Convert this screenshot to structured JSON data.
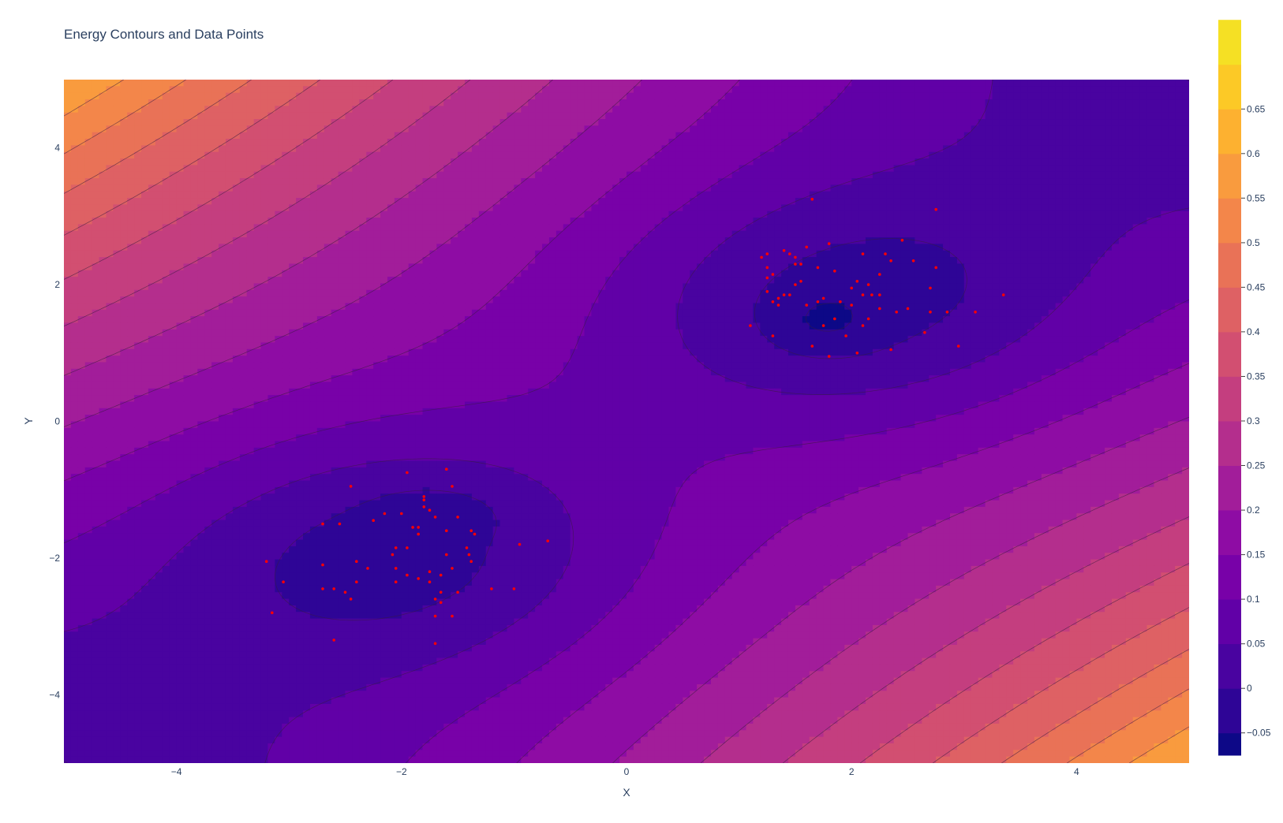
{
  "chart_data": {
    "type": "contour",
    "title": "Energy Contours and Data Points",
    "xlabel": "X",
    "ylabel": "Y",
    "xlim": [
      -5,
      5
    ],
    "ylim": [
      -5,
      5
    ],
    "x_ticks": [
      -4,
      -2,
      0,
      2,
      4
    ],
    "x_tick_labels": [
      "−4",
      "−2",
      "0",
      "2",
      "4"
    ],
    "y_ticks": [
      -4,
      -2,
      0,
      2,
      4
    ],
    "y_tick_labels": [
      "−4",
      "−2",
      "0",
      "2",
      "4"
    ],
    "grid": false,
    "contour": {
      "description_of_field": "double-well energy: minima near (-1.7,-1.3) and (1.8,1.4); highest in top-left and bottom-right corners",
      "start": -0.05,
      "end": 0.65,
      "size": 0.05,
      "zmin": -0.075,
      "zmax": 0.675,
      "colorscale": "plasma",
      "colors": [
        "#0d0887",
        "#2e0596",
        "#4903a0",
        "#6100a7",
        "#7801a8",
        "#8e0ca4",
        "#a21d9a",
        "#b42e8d",
        "#c43e7f",
        "#d24f71",
        "#de6164",
        "#e97257",
        "#f3864a",
        "#f99b3e",
        "#fdb130",
        "#fcc926",
        "#f5e024",
        "#f0f921"
      ]
    },
    "colorbar": {
      "ticks": [
        -0.05,
        0,
        0.05,
        0.1,
        0.15,
        0.2,
        0.25,
        0.3,
        0.35,
        0.4,
        0.45,
        0.5,
        0.55,
        0.6,
        0.65
      ],
      "tick_labels": [
        "−0.05",
        "0",
        "0.05",
        "0.1",
        "0.15",
        "0.2",
        "0.25",
        "0.3",
        "0.35",
        "0.4",
        "0.45",
        "0.5",
        "0.55",
        "0.6",
        "0.65"
      ]
    },
    "points": {
      "color": "#ff0000",
      "cluster1": [
        [
          -1.8,
          -1.1
        ],
        [
          -1.6,
          -0.7
        ],
        [
          -1.95,
          -0.75
        ],
        [
          -1.55,
          -0.95
        ],
        [
          -2.45,
          -0.95
        ],
        [
          -1.75,
          -1.3
        ],
        [
          -1.8,
          -1.15
        ],
        [
          -1.5,
          -1.4
        ],
        [
          -1.85,
          -1.55
        ],
        [
          -2.0,
          -1.35
        ],
        [
          -2.15,
          -1.35
        ],
        [
          -2.25,
          -1.45
        ],
        [
          -2.7,
          -1.5
        ],
        [
          -2.55,
          -1.5
        ],
        [
          -1.7,
          -1.4
        ],
        [
          -1.6,
          -1.6
        ],
        [
          -1.35,
          -1.65
        ],
        [
          -1.38,
          -1.6
        ],
        [
          -0.95,
          -1.8
        ],
        [
          -0.7,
          -1.75
        ],
        [
          -1.42,
          -1.85
        ],
        [
          -1.4,
          -1.95
        ],
        [
          -1.38,
          -2.05
        ],
        [
          -1.6,
          -1.95
        ],
        [
          -1.95,
          -1.85
        ],
        [
          -2.05,
          -1.85
        ],
        [
          -2.08,
          -1.95
        ],
        [
          -2.05,
          -2.15
        ],
        [
          -2.3,
          -2.15
        ],
        [
          -2.4,
          -2.05
        ],
        [
          -2.7,
          -2.1
        ],
        [
          -3.2,
          -2.05
        ],
        [
          -1.55,
          -2.15
        ],
        [
          -1.65,
          -2.25
        ],
        [
          -1.75,
          -2.2
        ],
        [
          -1.95,
          -2.25
        ],
        [
          -1.85,
          -2.3
        ],
        [
          -2.05,
          -2.35
        ],
        [
          -2.4,
          -2.35
        ],
        [
          -3.05,
          -2.35
        ],
        [
          -1.75,
          -2.35
        ],
        [
          -1.65,
          -2.5
        ],
        [
          -1.5,
          -2.5
        ],
        [
          -1.2,
          -2.45
        ],
        [
          -1.0,
          -2.45
        ],
        [
          -2.5,
          -2.5
        ],
        [
          -2.6,
          -2.45
        ],
        [
          -2.7,
          -2.45
        ],
        [
          -2.45,
          -2.6
        ],
        [
          -1.7,
          -2.6
        ],
        [
          -1.65,
          -2.65
        ],
        [
          -1.7,
          -2.85
        ],
        [
          -1.55,
          -2.85
        ],
        [
          -3.15,
          -2.8
        ],
        [
          -2.6,
          -3.2
        ],
        [
          -1.7,
          -3.25
        ],
        [
          -1.8,
          -1.25
        ],
        [
          -1.9,
          -1.55
        ],
        [
          -1.85,
          -1.65
        ]
      ],
      "cluster2": [
        [
          1.65,
          3.25
        ],
        [
          2.75,
          3.1
        ],
        [
          1.8,
          2.6
        ],
        [
          1.6,
          2.55
        ],
        [
          2.45,
          2.65
        ],
        [
          1.25,
          2.45
        ],
        [
          1.4,
          2.5
        ],
        [
          1.45,
          2.45
        ],
        [
          1.5,
          2.4
        ],
        [
          1.2,
          2.4
        ],
        [
          2.1,
          2.45
        ],
        [
          2.3,
          2.45
        ],
        [
          2.35,
          2.35
        ],
        [
          2.55,
          2.35
        ],
        [
          1.5,
          2.3
        ],
        [
          1.55,
          2.3
        ],
        [
          1.7,
          2.25
        ],
        [
          1.85,
          2.2
        ],
        [
          2.75,
          2.25
        ],
        [
          2.25,
          2.15
        ],
        [
          1.3,
          2.15
        ],
        [
          1.25,
          2.1
        ],
        [
          1.55,
          2.05
        ],
        [
          1.5,
          2.0
        ],
        [
          2.05,
          2.05
        ],
        [
          2.15,
          2.0
        ],
        [
          1.25,
          1.9
        ],
        [
          1.45,
          1.85
        ],
        [
          1.4,
          1.85
        ],
        [
          2.25,
          1.85
        ],
        [
          2.18,
          1.85
        ],
        [
          2.1,
          1.85
        ],
        [
          2.0,
          1.95
        ],
        [
          2.7,
          1.95
        ],
        [
          3.35,
          1.85
        ],
        [
          1.3,
          1.75
        ],
        [
          1.35,
          1.8
        ],
        [
          1.35,
          1.7
        ],
        [
          1.7,
          1.75
        ],
        [
          1.75,
          1.8
        ],
        [
          1.6,
          1.7
        ],
        [
          1.9,
          1.75
        ],
        [
          2.0,
          1.7
        ],
        [
          2.25,
          1.65
        ],
        [
          2.4,
          1.6
        ],
        [
          2.5,
          1.65
        ],
        [
          2.7,
          1.6
        ],
        [
          2.85,
          1.6
        ],
        [
          3.1,
          1.6
        ],
        [
          1.85,
          1.5
        ],
        [
          2.15,
          1.5
        ],
        [
          2.1,
          1.4
        ],
        [
          1.75,
          1.4
        ],
        [
          1.1,
          1.4
        ],
        [
          1.3,
          1.25
        ],
        [
          2.65,
          1.3
        ],
        [
          1.95,
          1.25
        ],
        [
          2.95,
          1.1
        ],
        [
          1.65,
          1.1
        ],
        [
          2.35,
          1.05
        ],
        [
          2.05,
          1.0
        ],
        [
          1.8,
          0.95
        ],
        [
          1.25,
          2.25
        ]
      ]
    }
  }
}
